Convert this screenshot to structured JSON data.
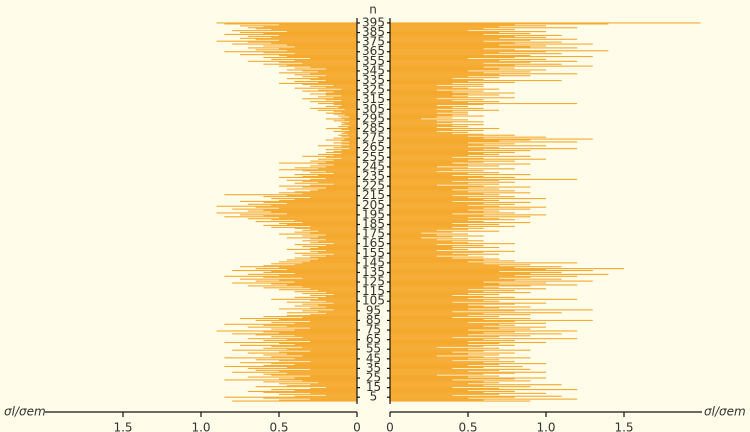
{
  "chart_data": {
    "type": "bar",
    "orientation": "horizontal",
    "title": "n",
    "y": [
      1,
      2,
      3,
      4,
      5,
      6,
      7,
      8,
      9,
      10,
      11,
      12,
      13,
      14,
      15,
      16,
      17,
      18,
      19,
      20,
      21,
      22,
      23,
      24,
      25,
      26,
      27,
      28,
      29,
      30,
      31,
      32,
      33,
      34,
      35,
      36,
      37,
      38,
      39,
      40,
      41,
      42,
      43,
      44,
      45,
      46,
      47,
      48,
      49,
      50,
      51,
      52,
      53,
      54,
      55,
      56,
      57,
      58,
      59,
      60,
      61,
      62,
      63,
      64,
      65,
      66,
      67,
      68,
      69,
      70,
      71,
      72,
      73,
      74,
      75,
      76,
      77,
      78,
      79,
      80,
      81,
      82,
      83,
      84,
      85,
      86,
      87,
      88,
      89,
      90,
      91,
      92,
      93,
      94,
      95,
      96,
      97,
      98,
      99,
      100,
      101,
      102,
      103,
      104,
      105,
      106,
      107,
      108,
      109,
      110,
      111,
      112,
      113,
      114,
      115,
      116,
      117,
      118,
      119,
      120,
      121,
      122,
      123,
      124,
      125,
      126,
      127,
      128,
      129,
      130,
      131,
      132,
      133,
      134,
      135,
      136,
      137,
      138,
      139,
      140,
      141,
      142,
      143,
      144,
      145,
      146,
      147,
      148,
      149,
      150,
      151,
      152,
      153,
      154,
      155,
      156,
      157,
      158,
      159,
      160,
      161,
      162,
      163,
      164,
      165,
      166,
      167,
      168,
      169,
      170,
      171,
      172,
      173,
      174,
      175,
      176,
      177,
      178,
      179,
      180,
      181,
      182,
      183,
      184,
      185,
      186,
      187,
      188,
      189,
      190,
      191,
      192,
      193,
      194,
      195,
      196,
      197,
      198,
      199,
      200,
      201,
      202,
      203,
      204,
      205,
      206,
      207,
      208,
      209,
      210,
      211,
      212,
      213,
      214,
      215,
      216,
      217,
      218,
      219,
      220,
      221,
      222,
      223,
      224,
      225,
      226,
      227,
      228,
      229,
      230,
      231,
      232,
      233,
      234,
      235,
      236,
      237,
      238,
      239,
      240,
      241,
      242,
      243,
      244,
      245,
      246,
      247,
      248,
      249,
      250,
      251,
      252,
      253,
      254,
      255,
      256,
      257,
      258,
      259,
      260,
      261,
      262,
      263,
      264,
      265,
      266,
      267,
      268,
      269,
      270,
      271,
      272,
      273,
      274,
      275,
      276,
      277,
      278,
      279,
      280,
      281,
      282,
      283,
      284,
      285,
      286,
      287,
      288,
      289,
      290,
      291,
      292,
      293,
      294,
      295,
      296,
      297,
      298,
      299,
      300,
      301,
      302,
      303,
      304,
      305,
      306,
      307,
      308,
      309,
      310,
      311,
      312,
      313,
      314,
      315,
      316,
      317,
      318,
      319,
      320,
      321,
      322,
      323,
      324,
      325,
      326,
      327,
      328,
      329,
      330,
      331,
      332,
      333,
      334,
      335,
      336,
      337,
      338,
      339,
      340,
      341,
      342,
      343,
      344,
      345,
      346,
      347,
      348,
      349,
      350,
      351,
      352,
      353,
      354,
      355,
      356,
      357,
      358,
      359,
      360,
      361,
      362,
      363,
      364,
      365,
      366,
      367,
      368,
      369,
      370,
      371,
      372,
      373,
      374,
      375,
      376,
      377,
      378,
      379,
      380,
      381,
      382,
      383,
      384,
      385,
      386,
      387,
      388,
      389,
      390,
      391,
      392,
      393,
      394,
      395
    ],
    "ylim": [
      0,
      396
    ],
    "yticks": [
      5,
      15,
      25,
      35,
      45,
      55,
      65,
      75,
      85,
      95,
      105,
      115,
      125,
      135,
      145,
      155,
      165,
      175,
      185,
      195,
      205,
      215,
      225,
      235,
      245,
      255,
      265,
      275,
      285,
      295,
      305,
      315,
      325,
      335,
      345,
      355,
      365,
      375,
      385,
      395
    ],
    "series": [
      {
        "side": "left",
        "color": "#f5a92e",
        "xlabel": "σl/σem",
        "xlim": [
          0,
          2
        ],
        "xticks": [
          0,
          0.5,
          {
            "value": 1,
            "label": "1.0"
          },
          1.5
        ],
        "values": [
          0.8,
          0.5,
          0.3,
          0.6,
          0.85,
          0.4,
          0.2,
          0.5,
          0.3,
          0.6,
          0.7,
          0.4,
          0.55,
          0.3,
          0.2,
          0.65,
          0.45,
          0.3,
          0.5,
          0.25,
          0.6,
          0.35,
          0.85,
          0.5,
          0.4,
          0.7,
          0.3,
          0.55,
          0.6,
          0.45,
          0.8,
          0.5,
          0.65,
          0.3,
          0.7,
          0.45,
          0.85,
          0.6,
          0.4,
          0.55,
          0.75,
          0.3,
          0.5,
          0.65,
          0.4,
          0.85,
          0.55,
          0.35,
          0.6,
          0.45,
          0.7,
          0.5,
          0.3,
          0.8,
          0.45,
          0.6,
          0.35,
          0.55,
          0.75,
          0.4,
          0.5,
          0.85,
          0.3,
          0.6,
          0.45,
          0.7,
          0.35,
          0.55,
          0.4,
          0.65,
          0.8,
          0.5,
          0.6,
          0.9,
          0.4,
          0.55,
          0.3,
          0.7,
          0.45,
          0.6,
          0.85,
          0.4,
          0.55,
          0.3,
          0.65,
          0.5,
          0.75,
          0.35,
          0.6,
          0.45,
          0.3,
          0.2,
          0.45,
          0.25,
          0.35,
          0.15,
          0.5,
          0.3,
          0.2,
          0.4,
          0.25,
          0.35,
          0.15,
          0.45,
          0.2,
          0.3,
          0.55,
          0.25,
          0.4,
          0.2,
          0.3,
          0.15,
          0.35,
          0.2,
          0.4,
          0.25,
          0.5,
          0.3,
          0.6,
          0.35,
          0.7,
          0.45,
          0.55,
          0.8,
          0.4,
          0.65,
          0.5,
          0.75,
          0.35,
          0.6,
          0.85,
          0.5,
          0.7,
          0.4,
          0.6,
          0.55,
          0.8,
          0.45,
          0.65,
          0.5,
          0.75,
          0.6,
          0.4,
          0.55,
          0.35,
          0.5,
          0.3,
          0.45,
          0.25,
          0.4,
          0.3,
          0.2,
          0.35,
          0.15,
          0.4,
          0.25,
          0.3,
          0.2,
          0.45,
          0.3,
          0.25,
          0.35,
          0.2,
          0.4,
          0.15,
          0.3,
          0.25,
          0.35,
          0.2,
          0.3,
          0.45,
          0.25,
          0.35,
          0.2,
          0.5,
          0.3,
          0.4,
          0.25,
          0.35,
          0.3,
          0.4,
          0.55,
          0.3,
          0.6,
          0.45,
          0.5,
          0.35,
          0.65,
          0.4,
          0.55,
          0.7,
          0.5,
          0.85,
          0.6,
          0.75,
          0.45,
          0.9,
          0.55,
          0.7,
          0.6,
          0.8,
          0.5,
          0.65,
          0.9,
          0.55,
          0.7,
          0.45,
          0.6,
          0.75,
          0.5,
          0.4,
          0.55,
          0.3,
          0.6,
          0.45,
          0.85,
          0.35,
          0.5,
          0.4,
          0.3,
          0.25,
          0.45,
          0.2,
          0.35,
          0.5,
          0.3,
          0.15,
          0.4,
          0.25,
          0.35,
          0.45,
          0.3,
          0.2,
          0.5,
          0.35,
          0.25,
          0.4,
          0.15,
          0.3,
          0.2,
          0.35,
          0.5,
          0.25,
          0.4,
          0.2,
          0.3,
          0.15,
          0.25,
          0.5,
          0.2,
          0.3,
          0.15,
          0.25,
          0.1,
          0.2,
          0.35,
          0.15,
          0.25,
          0.1,
          0.2,
          0.15,
          0.1,
          0.2,
          0.05,
          0.15,
          0.1,
          0.25,
          0.05,
          0.1,
          0.15,
          0.05,
          0.1,
          0.2,
          0.08,
          0.15,
          0.05,
          0.1,
          0.12,
          0.06,
          0.1,
          0.08,
          0.15,
          0.05,
          0.1,
          0.2,
          0.06,
          0.12,
          0.05,
          0.1,
          0.08,
          0.1,
          0.05,
          0.15,
          0.08,
          0.2,
          0.1,
          0.05,
          0.12,
          0.08,
          0.15,
          0.2,
          0.1,
          0.15,
          0.25,
          0.08,
          0.3,
          0.12,
          0.2,
          0.1,
          0.15,
          0.25,
          0.15,
          0.3,
          0.1,
          0.2,
          0.35,
          0.15,
          0.25,
          0.1,
          0.2,
          0.3,
          0.2,
          0.15,
          0.35,
          0.25,
          0.1,
          0.4,
          0.2,
          0.3,
          0.15,
          0.35,
          0.5,
          0.25,
          0.4,
          0.2,
          0.3,
          0.45,
          0.25,
          0.35,
          0.2,
          0.4,
          0.3,
          0.5,
          0.25,
          0.35,
          0.45,
          0.2,
          0.4,
          0.3,
          0.5,
          0.45,
          0.6,
          0.35,
          0.5,
          0.7,
          0.4,
          0.55,
          0.3,
          0.6,
          0.45,
          0.5,
          0.75,
          0.4,
          0.6,
          0.85,
          0.45,
          0.65,
          0.5,
          0.7,
          0.4,
          0.6,
          0.45,
          0.8,
          0.55,
          0.7,
          0.9,
          0.5,
          0.65,
          0.75,
          0.55,
          0.7,
          0.5,
          0.85,
          0.6,
          0.75,
          0.45,
          0.8,
          0.55,
          0.65,
          0.7,
          0.6,
          0.75,
          0.5,
          0.85,
          0.9
        ]
      },
      {
        "side": "right",
        "color": "#f5a92e",
        "xlabel": "σl/σem",
        "xlim": [
          0,
          2
        ],
        "xticks": [
          0,
          0.5,
          {
            "value": 1,
            "label": "1.0"
          },
          1.5
        ],
        "values": [
          0.9,
          0.6,
          1.2,
          0.5,
          0.8,
          1.1,
          0.4,
          0.7,
          1.0,
          0.6,
          0.8,
          0.5,
          1.2,
          0.7,
          0.4,
          0.9,
          0.6,
          1.1,
          0.5,
          0.7,
          0.6,
          0.9,
          0.4,
          0.8,
          1.0,
          0.5,
          0.7,
          0.3,
          0.6,
          0.8,
          1.0,
          0.5,
          0.7,
          0.9,
          0.4,
          0.6,
          0.85,
          0.5,
          0.7,
          1.0,
          0.6,
          0.8,
          0.4,
          0.7,
          0.5,
          0.9,
          0.6,
          0.3,
          0.7,
          0.5,
          0.8,
          0.4,
          0.6,
          0.9,
          0.5,
          0.7,
          0.3,
          0.6,
          0.8,
          0.5,
          0.7,
          1.0,
          0.5,
          0.8,
          0.6,
          1.2,
          0.4,
          0.7,
          0.9,
          0.5,
          1.1,
          0.6,
          0.8,
          1.2,
          0.5,
          0.9,
          0.7,
          1.0,
          0.6,
          0.8,
          0.7,
          1.0,
          0.5,
          0.8,
          1.3,
          0.6,
          0.9,
          0.4,
          0.7,
          0.5,
          0.9,
          0.6,
          1.1,
          0.4,
          0.8,
          1.3,
          0.5,
          0.7,
          0.9,
          0.6,
          0.5,
          0.8,
          1.0,
          0.4,
          0.7,
          0.6,
          1.2,
          0.5,
          0.8,
          0.6,
          0.4,
          0.7,
          0.5,
          0.9,
          0.6,
          0.8,
          0.5,
          1.0,
          0.7,
          0.6,
          0.9,
          1.2,
          0.7,
          1.0,
          0.6,
          1.3,
          0.8,
          1.1,
          0.7,
          0.9,
          1.2,
          0.8,
          1.4,
          0.9,
          1.1,
          0.7,
          1.3,
          1.0,
          1.5,
          0.8,
          1.1,
          0.7,
          0.9,
          0.6,
          1.2,
          0.5,
          0.8,
          0.6,
          0.7,
          0.4,
          0.6,
          0.3,
          0.5,
          0.7,
          0.4,
          0.6,
          0.8,
          0.3,
          0.5,
          0.4,
          0.7,
          0.4,
          0.6,
          0.3,
          0.8,
          0.5,
          0.4,
          0.6,
          0.3,
          0.5,
          0.2,
          0.4,
          0.6,
          0.3,
          0.5,
          0.2,
          0.4,
          0.7,
          0.3,
          0.5,
          0.6,
          0.4,
          0.8,
          0.5,
          0.7,
          0.4,
          0.9,
          0.6,
          0.5,
          0.8,
          0.7,
          0.5,
          0.9,
          0.6,
          1.0,
          0.4,
          0.8,
          0.6,
          0.7,
          0.5,
          0.9,
          0.6,
          1.0,
          0.7,
          0.5,
          0.8,
          0.6,
          0.9,
          0.4,
          0.7,
          0.6,
          1.0,
          0.5,
          0.8,
          0.4,
          0.7,
          0.6,
          0.9,
          0.5,
          0.8,
          0.4,
          0.7,
          0.5,
          0.9,
          0.6,
          0.3,
          0.7,
          0.5,
          0.8,
          0.4,
          0.7,
          1.2,
          0.5,
          0.8,
          0.6,
          0.4,
          0.9,
          0.5,
          0.7,
          0.3,
          0.6,
          0.4,
          0.8,
          0.5,
          0.3,
          0.7,
          0.5,
          0.9,
          0.4,
          0.6,
          0.8,
          0.5,
          1.0,
          0.6,
          0.4,
          0.9,
          0.5,
          0.7,
          0.6,
          0.8,
          0.5,
          0.9,
          0.6,
          1.2,
          0.7,
          0.5,
          1.0,
          0.6,
          0.8,
          0.5,
          1.2,
          0.7,
          0.9,
          1.3,
          0.6,
          1.0,
          0.5,
          0.8,
          0.6,
          0.4,
          0.5,
          0.3,
          0.6,
          0.4,
          0.7,
          0.3,
          0.5,
          0.4,
          0.6,
          0.3,
          0.4,
          0.6,
          0.3,
          0.5,
          0.2,
          0.4,
          0.3,
          0.6,
          0.4,
          0.5,
          0.3,
          0.5,
          0.4,
          0.7,
          0.3,
          0.6,
          0.4,
          0.5,
          0.3,
          0.6,
          1.2,
          0.5,
          0.7,
          0.4,
          0.6,
          0.3,
          0.8,
          0.5,
          0.4,
          0.7,
          0.5,
          0.8,
          0.4,
          0.6,
          0.3,
          0.7,
          0.5,
          0.4,
          0.6,
          0.3,
          0.6,
          0.4,
          0.8,
          0.5,
          1.1,
          0.6,
          0.4,
          0.7,
          0.5,
          0.9,
          0.7,
          1.2,
          0.6,
          0.9,
          0.5,
          1.0,
          0.7,
          0.8,
          0.6,
          1.3,
          0.8,
          1.1,
          0.6,
          0.9,
          1.2,
          0.7,
          1.0,
          0.5,
          0.8,
          1.3,
          0.9,
          0.6,
          1.1,
          0.7,
          1.0,
          1.4,
          0.8,
          0.6,
          1.2,
          0.9,
          1.0,
          0.7,
          1.3,
          0.8,
          1.1,
          0.6,
          0.9,
          1.2,
          0.7,
          1.0,
          0.8,
          1.1,
          0.6,
          0.9,
          0.7,
          1.0,
          0.5,
          0.8,
          0.6,
          1.2,
          0.7,
          1.0,
          0.8,
          1.4,
          1.99
        ]
      }
    ]
  }
}
